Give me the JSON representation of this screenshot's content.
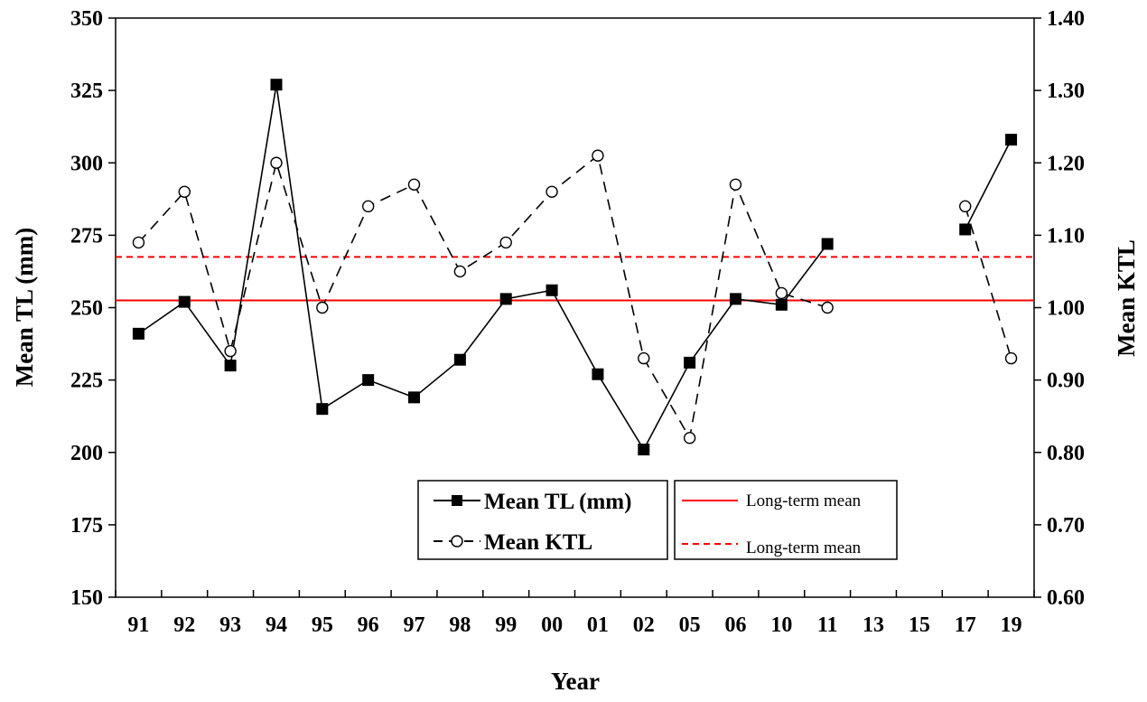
{
  "chart_data": {
    "type": "line",
    "title": "",
    "xlabel": "Year",
    "ylabel_left": "Mean TL (mm)",
    "ylabel_right": "Mean KTL",
    "categories": [
      "91",
      "92",
      "93",
      "94",
      "95",
      "96",
      "97",
      "98",
      "99",
      "00",
      "01",
      "02",
      "05",
      "06",
      "10",
      "11",
      "13",
      "15",
      "17",
      "19"
    ],
    "ylim_left": [
      150,
      350
    ],
    "yticks_left": [
      "150",
      "175",
      "200",
      "225",
      "250",
      "275",
      "300",
      "325",
      "350"
    ],
    "ylim_right": [
      0.6,
      1.4
    ],
    "yticks_right": [
      "0.60",
      "0.70",
      "0.80",
      "0.90",
      "1.00",
      "1.10",
      "1.20",
      "1.30",
      "1.40"
    ],
    "series": [
      {
        "name": "Mean TL (mm)",
        "axis": "left",
        "marker": "filled-square",
        "line": "solid",
        "color": "#000000",
        "values": [
          241,
          252,
          230,
          327,
          215,
          225,
          219,
          232,
          253,
          256,
          227,
          201,
          231,
          253,
          251,
          272,
          null,
          null,
          277,
          308
        ]
      },
      {
        "name": "Mean KTL",
        "axis": "right",
        "marker": "open-circle",
        "line": "dashed",
        "color": "#000000",
        "values": [
          1.09,
          1.16,
          0.94,
          1.2,
          1.0,
          1.14,
          1.17,
          1.05,
          1.09,
          1.16,
          1.21,
          0.93,
          0.82,
          1.17,
          1.02,
          1.0,
          null,
          null,
          1.14,
          0.93
        ]
      }
    ],
    "reference_lines": [
      {
        "label": "Long-term mean",
        "axis": "left",
        "value": 252.5,
        "style": "solid",
        "color": "#ff0000"
      },
      {
        "label": "Long-term mean",
        "axis": "right",
        "value": 1.07,
        "style": "dashed",
        "color": "#ff0000"
      }
    ],
    "grid": false,
    "legend": {
      "placement": "bottom-center",
      "series_labels": [
        "Mean TL (mm)",
        "Mean KTL"
      ],
      "reference_labels": [
        "Long-term mean",
        "Long-term mean"
      ]
    }
  }
}
